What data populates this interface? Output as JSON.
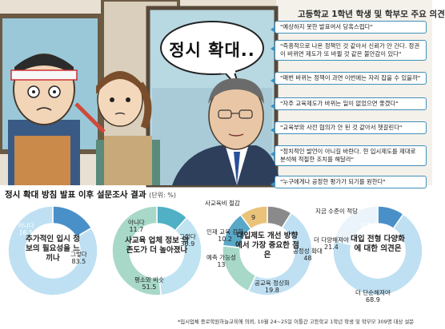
{
  "illustration": {
    "speech_bubble": "정시 확대.."
  },
  "opinions": {
    "title": "고등학교 1학년 학생 및 학부모 주요 의견",
    "items": [
      "\"예상하지 못한 발표여서 당혹스럽다\"",
      "\"즉흥적으로 나온 정책인 것 같아서 신뢰가 안 간다. 정권이 바뀌면 제도가 또 바뀔 것 같은 불안감이 있다\"",
      "\"매번 바뀌는 정책이 과연 이번에는 자리 잡을 수 있을까\"",
      "\"자주 교육제도가 바뀌는 일이 없었으면 좋겠다\"",
      "\"교육부와 사전 협의가 안 된 것 같아서 헷갈린다\"",
      "\"정치적인 발언이 아니길 바란다. 현 입시제도를 제대로 분석해 적절한 조치를 해달라\"",
      "\"누구에게나 공정한 평가가 되기를 원한다\""
    ]
  },
  "survey": {
    "title": "정시 확대 방침 발표 이후 설문조사 결과",
    "unit": "(단위: %)"
  },
  "chart_data": [
    {
      "type": "pie",
      "title": "추가적인 입시 정보의 필요성을 느끼나",
      "series": [
        {
          "values": [
            {
              "label": "아니다",
              "value": 16.5,
              "color": "#4a90c8"
            },
            {
              "label": "그렇다",
              "value": 83.5,
              "color": "#bfe0f2"
            }
          ]
        }
      ]
    },
    {
      "type": "pie",
      "title": "사교육 업체 정보 의존도가 더 높아졌나",
      "series": [
        {
          "values": [
            {
              "label": "아니다",
              "value": 11.7,
              "color": "#4fb0c6"
            },
            {
              "label": "그렇다",
              "value": 36.9,
              "color": "#bfe3f1"
            },
            {
              "label": "평소와 비슷",
              "value": 51.5,
              "color": "#a8d8c8"
            }
          ]
        }
      ]
    },
    {
      "type": "pie",
      "title": "대입제도 개선 방향에서 가장 중요한 점은",
      "series": [
        {
          "values": [
            {
              "label": "사교육비 절감",
              "value": 9.0,
              "color": "#8a8a8a"
            },
            {
              "label": "공정성 확대",
              "value": 48.0,
              "color": "#bfe0f2"
            },
            {
              "label": "공교육 정상화",
              "value": 19.8,
              "color": "#a8d8c8"
            },
            {
              "label": "예측 가능성",
              "value": 13.0,
              "color": "#5aa8c8"
            },
            {
              "label": "인재 교육 강화",
              "value": 10.2,
              "color": "#e9c37a"
            }
          ]
        }
      ]
    },
    {
      "type": "pie",
      "title": "대입 전형 다양화에 대한 의견은",
      "series": [
        {
          "values": [
            {
              "label": "지금 수준이 적당",
              "value": 9.7,
              "color": "#4a90c8"
            },
            {
              "label": "더 단순해져야",
              "value": 68.9,
              "color": "#bfe0f2"
            },
            {
              "label": "더 다양해져야",
              "value": 21.4,
              "color": "#eaf4fa"
            }
          ]
        }
      ]
    }
  ],
  "footnote": "*입시업체 종로학원하늘교육에 의뢰, 10월 24~25일 이틀간 고등학교 1학년 학생 및 학부모 309명 대상 설문"
}
